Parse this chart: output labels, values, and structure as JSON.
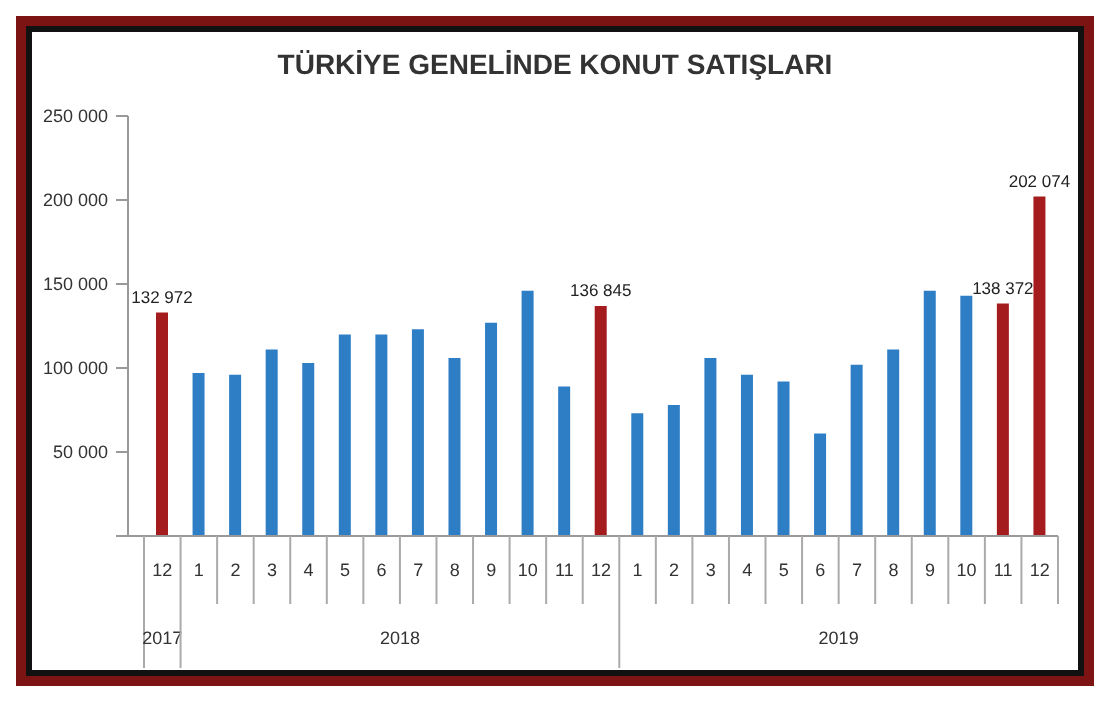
{
  "chart_data": {
    "type": "bar",
    "title": "TÜRKİYE GENELİNDE KONUT SATIŞLARI",
    "categories": [
      "12",
      "1",
      "2",
      "3",
      "4",
      "5",
      "6",
      "7",
      "8",
      "9",
      "10",
      "11",
      "12",
      "1",
      "2",
      "3",
      "4",
      "5",
      "6",
      "7",
      "8",
      "9",
      "10",
      "11",
      "12"
    ],
    "values": [
      132972,
      97000,
      96000,
      111000,
      103000,
      120000,
      120000,
      123000,
      106000,
      127000,
      146000,
      89000,
      136845,
      73000,
      78000,
      106000,
      96000,
      92000,
      61000,
      102000,
      111000,
      146000,
      143000,
      138372,
      202074
    ],
    "colors": [
      "#a51c1f",
      "#2e7ec6",
      "#2e7ec6",
      "#2e7ec6",
      "#2e7ec6",
      "#2e7ec6",
      "#2e7ec6",
      "#2e7ec6",
      "#2e7ec6",
      "#2e7ec6",
      "#2e7ec6",
      "#2e7ec6",
      "#a51c1f",
      "#2e7ec6",
      "#2e7ec6",
      "#2e7ec6",
      "#2e7ec6",
      "#2e7ec6",
      "#2e7ec6",
      "#2e7ec6",
      "#2e7ec6",
      "#2e7ec6",
      "#2e7ec6",
      "#a51c1f",
      "#a51c1f"
    ],
    "value_labels": [
      "132 972",
      null,
      null,
      null,
      null,
      null,
      null,
      null,
      null,
      null,
      null,
      null,
      "136 845",
      null,
      null,
      null,
      null,
      null,
      null,
      null,
      null,
      null,
      null,
      "138 372",
      "202 074"
    ],
    "ylim": [
      0,
      250000
    ],
    "yticks": [
      {
        "value": 0,
        "label": null
      },
      {
        "value": 50000,
        "label": "50 000"
      },
      {
        "value": 100000,
        "label": "100 000"
      },
      {
        "value": 150000,
        "label": "150 000"
      },
      {
        "value": 200000,
        "label": "200 000"
      },
      {
        "value": 250000,
        "label": "250 000"
      }
    ],
    "annotations": [
      "2017",
      "2018",
      "2019"
    ],
    "grid": false,
    "legend": false
  }
}
